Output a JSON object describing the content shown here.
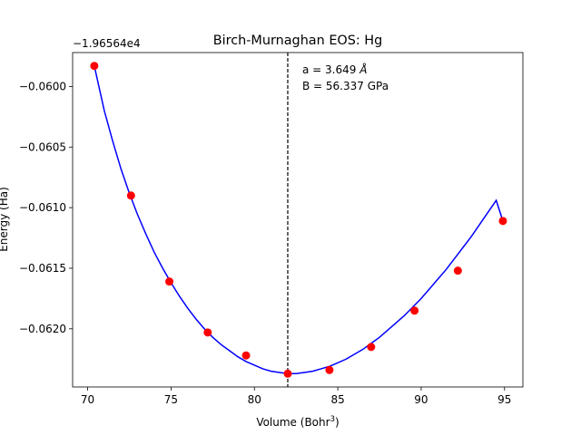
{
  "chart_data": {
    "type": "scatter",
    "title": "Birch-Murnaghan EOS: Hg",
    "xlabel": "Volume (Bohr",
    "xlabel_sup": "3",
    "xlabel_close": ")",
    "ylabel": "Energy (Ha)",
    "offset_label": "−1.96564e4",
    "xlim": [
      69.1,
      96.1
    ],
    "ylim": [
      -0.06248,
      -0.05972
    ],
    "x_ticks": [
      70,
      75,
      80,
      85,
      90,
      95
    ],
    "x_tick_labels": [
      "70",
      "75",
      "80",
      "85",
      "90",
      "95"
    ],
    "y_ticks": [
      -0.06,
      -0.0605,
      -0.061,
      -0.0615,
      -0.062
    ],
    "y_tick_labels": [
      "−0.0600",
      "−0.0605",
      "−0.0610",
      "−0.0615",
      "−0.0620"
    ],
    "grid": false,
    "series": [
      {
        "kind": "points",
        "color": "#ff0000",
        "x": [
          70.4,
          72.6,
          74.9,
          77.2,
          79.5,
          82.0,
          84.5,
          87.0,
          89.6,
          92.2,
          94.9
        ],
        "y": [
          -0.05983,
          -0.0609,
          -0.06161,
          -0.06203,
          -0.06222,
          -0.06237,
          -0.06234,
          -0.06215,
          -0.06185,
          -0.06152,
          -0.06111
        ]
      },
      {
        "kind": "fit-curve",
        "color": "#0000ff",
        "x": [
          70.4,
          71.0,
          71.5,
          72.0,
          72.5,
          73.0,
          73.5,
          74.0,
          74.5,
          75.0,
          75.5,
          76.0,
          76.5,
          77.0,
          77.5,
          78.0,
          78.5,
          79.0,
          79.5,
          80.0,
          80.5,
          81.0,
          81.5,
          82.0,
          82.5,
          83.0,
          83.5,
          84.0,
          84.5,
          85.0,
          85.5,
          86.0,
          86.5,
          87.0,
          87.5,
          88.0,
          88.5,
          89.0,
          89.5,
          90.0,
          90.5,
          91.0,
          91.5,
          92.0,
          92.5,
          93.0,
          93.5,
          94.0,
          94.5,
          94.9
        ],
        "y": [
          -0.05983,
          -0.0602,
          -0.06045,
          -0.06068,
          -0.06088,
          -0.06106,
          -0.06122,
          -0.06137,
          -0.0615,
          -0.06162,
          -0.06173,
          -0.06183,
          -0.06192,
          -0.062,
          -0.06207,
          -0.06213,
          -0.06218,
          -0.06223,
          -0.06227,
          -0.0623,
          -0.06233,
          -0.06235,
          -0.06236,
          -0.06237,
          -0.06237,
          -0.06236,
          -0.06235,
          -0.06233,
          -0.06231,
          -0.06228,
          -0.06225,
          -0.06221,
          -0.06217,
          -0.06212,
          -0.06207,
          -0.06201,
          -0.06195,
          -0.06189,
          -0.06182,
          -0.06175,
          -0.06167,
          -0.06159,
          -0.06151,
          -0.06142,
          -0.06133,
          -0.06124,
          -0.06114,
          -0.06104,
          -0.06094,
          -0.06111
        ]
      }
    ],
    "vline": {
      "x": 82.0,
      "color": "#000000",
      "style": "dashed"
    },
    "annotation": {
      "line1_prefix": "a = 3.649 ",
      "line1_unit": "Å",
      "line2": "B = 56.337 GPa"
    }
  }
}
